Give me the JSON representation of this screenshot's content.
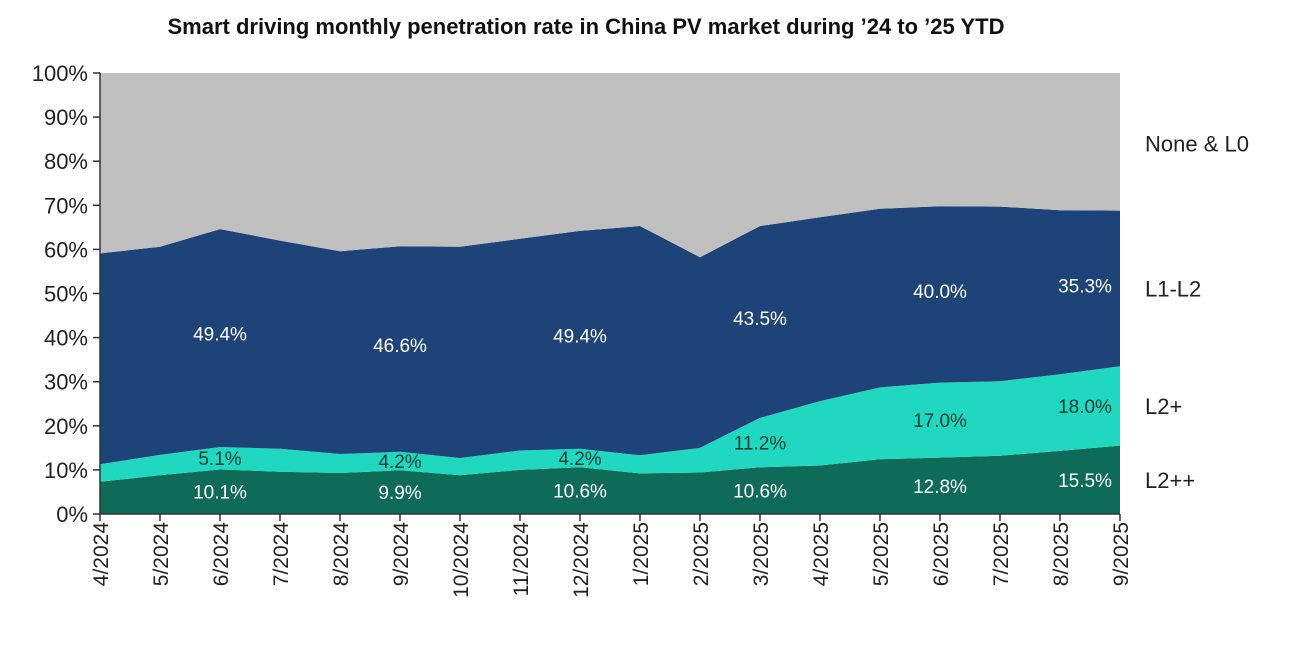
{
  "chart_data": {
    "type": "area",
    "stacked": true,
    "title": "Smart driving monthly penetration rate in China PV market during ’24 to ’25 YTD",
    "categories": [
      "4/2024",
      "5/2024",
      "6/2024",
      "7/2024",
      "8/2024",
      "9/2024",
      "10/2024",
      "11/2024",
      "12/2024",
      "1/2025",
      "2/2025",
      "3/2025",
      "4/2025",
      "5/2025",
      "6/2025",
      "7/2025",
      "8/2025",
      "9/2025"
    ],
    "ylim": [
      0,
      100
    ],
    "yticks": [
      "0%",
      "10%",
      "20%",
      "30%",
      "40%",
      "50%",
      "60%",
      "70%",
      "80%",
      "90%",
      "100%"
    ],
    "legend_position": "right",
    "series": [
      {
        "name": "L2++",
        "color": "#0e6b57",
        "values": [
          7.3,
          8.8,
          10.1,
          9.6,
          9.3,
          9.9,
          8.8,
          10.0,
          10.6,
          9.2,
          9.4,
          10.6,
          11.0,
          12.4,
          12.8,
          13.2,
          14.3,
          15.5
        ]
      },
      {
        "name": "L2+",
        "color": "#1fd8bf",
        "values": [
          4.0,
          4.6,
          5.1,
          5.2,
          4.3,
          4.2,
          3.9,
          4.4,
          4.2,
          4.1,
          5.6,
          11.2,
          14.6,
          16.3,
          17.0,
          16.9,
          17.4,
          18.0
        ]
      },
      {
        "name": "L1-L2",
        "color": "#1e4379",
        "values": [
          47.8,
          47.2,
          49.4,
          47.2,
          46.0,
          46.6,
          47.9,
          48.0,
          49.4,
          52.0,
          43.2,
          43.5,
          41.7,
          40.5,
          40.0,
          39.6,
          37.2,
          35.3
        ]
      },
      {
        "name": "None & L0",
        "color": "#c0c0c0",
        "values": [
          40.9,
          39.4,
          35.4,
          38.0,
          40.4,
          39.3,
          39.4,
          37.6,
          35.8,
          34.7,
          41.8,
          34.7,
          32.7,
          30.8,
          30.2,
          30.3,
          31.1,
          31.2
        ]
      }
    ],
    "data_labels": [
      {
        "series": "L1-L2",
        "category": "6/2024",
        "text": "49.4%"
      },
      {
        "series": "L1-L2",
        "category": "9/2024",
        "text": "46.6%"
      },
      {
        "series": "L1-L2",
        "category": "12/2024",
        "text": "49.4%"
      },
      {
        "series": "L1-L2",
        "category": "3/2025",
        "text": "43.5%"
      },
      {
        "series": "L1-L2",
        "category": "6/2025",
        "text": "40.0%"
      },
      {
        "series": "L1-L2",
        "category": "9/2025",
        "text": "35.3%"
      },
      {
        "series": "L2+",
        "category": "6/2024",
        "text": "5.1%"
      },
      {
        "series": "L2+",
        "category": "9/2024",
        "text": "4.2%"
      },
      {
        "series": "L2+",
        "category": "12/2024",
        "text": "4.2%"
      },
      {
        "series": "L2+",
        "category": "3/2025",
        "text": "11.2%"
      },
      {
        "series": "L2+",
        "category": "6/2025",
        "text": "17.0%"
      },
      {
        "series": "L2+",
        "category": "9/2025",
        "text": "18.0%"
      },
      {
        "series": "L2++",
        "category": "6/2024",
        "text": "10.1%"
      },
      {
        "series": "L2++",
        "category": "9/2024",
        "text": "9.9%"
      },
      {
        "series": "L2++",
        "category": "12/2024",
        "text": "10.6%"
      },
      {
        "series": "L2++",
        "category": "3/2025",
        "text": "10.6%"
      },
      {
        "series": "L2++",
        "category": "6/2025",
        "text": "12.8%"
      },
      {
        "series": "L2++",
        "category": "9/2025",
        "text": "15.5%"
      }
    ]
  }
}
